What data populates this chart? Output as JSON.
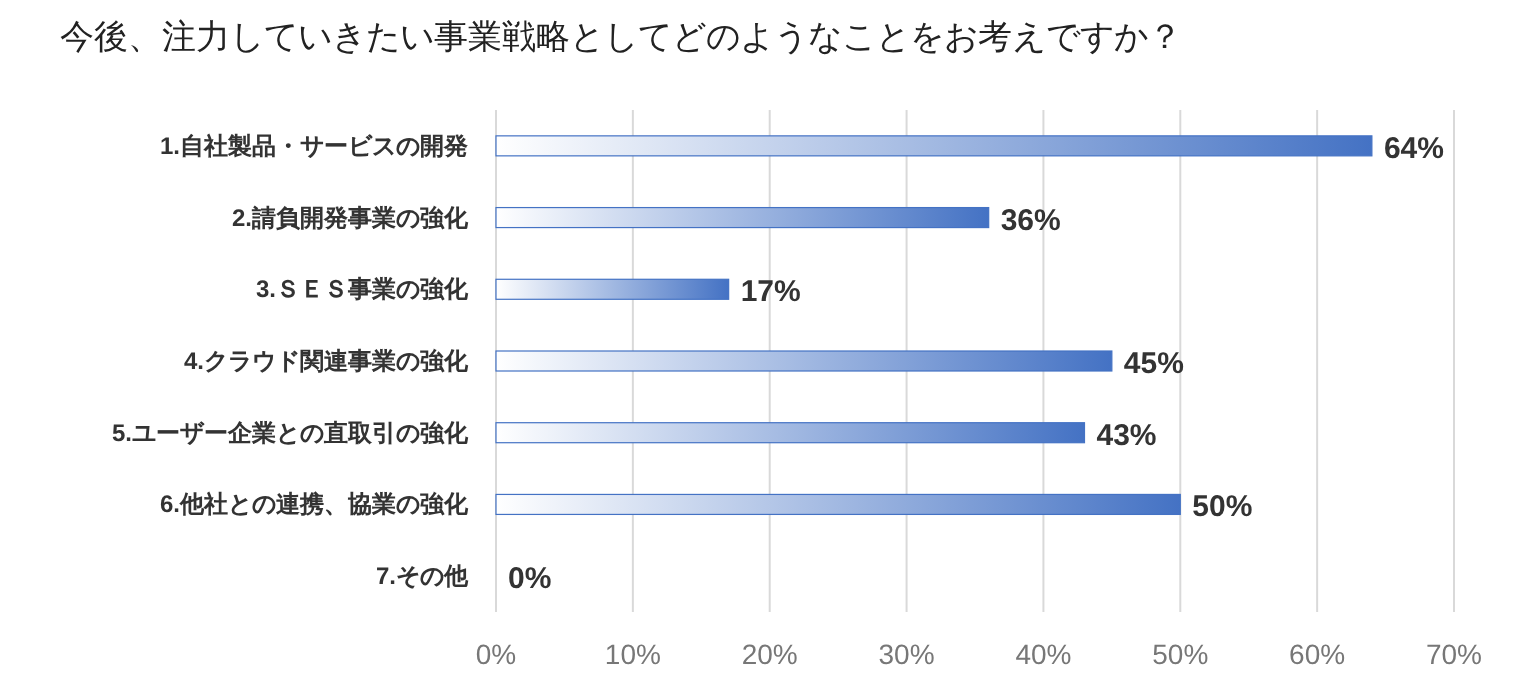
{
  "chart_data": {
    "type": "bar",
    "orientation": "horizontal",
    "title": "今後、注力していきたい事業戦略としてどのようなことをお考えですか？",
    "categories": [
      "1.自社製品・サービスの開発",
      "2.請負開発事業の強化",
      "3.ＳＥＳ事業の強化",
      "4.クラウド関連事業の強化",
      "5.ユーザー企業との直取引の強化",
      "6.他社との連携、協業の強化",
      "7.その他"
    ],
    "values": [
      64,
      36,
      17,
      45,
      43,
      50,
      0
    ],
    "value_labels": [
      "64%",
      "36%",
      "17%",
      "45%",
      "43%",
      "50%",
      "0%"
    ],
    "color": "#4472c4",
    "xlim": [
      0,
      70
    ],
    "xticks": [
      {
        "value": 0,
        "label": "0%"
      },
      {
        "value": 10,
        "label": "10%"
      },
      {
        "value": 20,
        "label": "20%"
      },
      {
        "value": 30,
        "label": "30%"
      },
      {
        "value": 40,
        "label": "40%"
      },
      {
        "value": 50,
        "label": "50%"
      },
      {
        "value": 60,
        "label": "60%"
      },
      {
        "value": 70,
        "label": "70%"
      }
    ],
    "grid": "x"
  }
}
